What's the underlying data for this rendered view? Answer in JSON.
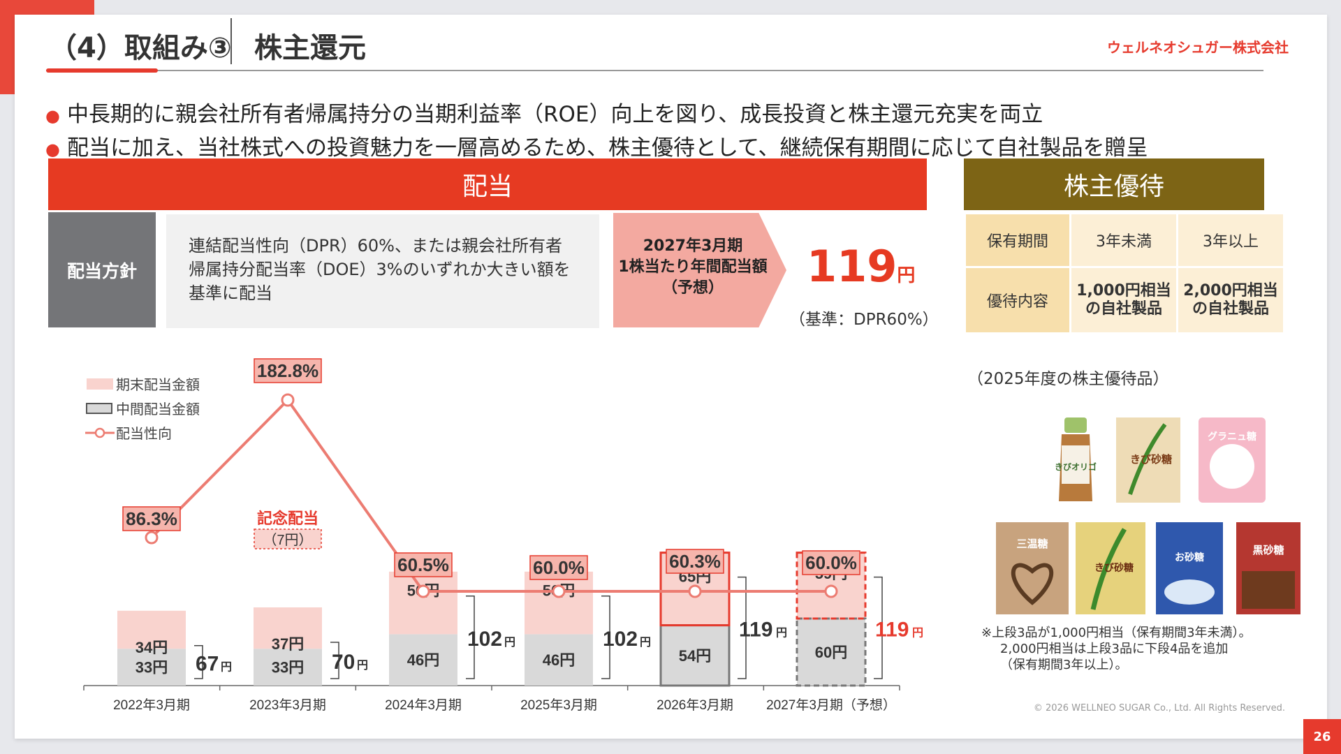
{
  "header": {
    "title": "（4）取組み③",
    "subtitle": "株主還元",
    "company": "ウェルネオシュガー株式会社"
  },
  "bullets": [
    "中長期的に親会社所有者帰属持分の当期利益率（ROE）向上を図り、成長投資と株主還元充実を両立",
    "配当に加え、当社株式への投資魅力を一層高めるため、株主優待として、継続保有期間に応じて自社製品を贈呈"
  ],
  "dividend": {
    "header": "配当",
    "policy_label": "配当方針",
    "policy_lines": [
      "連結配当性向（DPR）60%、または親会社所有者",
      "帰属持分配当率（DOE）3%のいずれか大きい額を",
      "基準に配当"
    ],
    "forecast_lines": [
      "2027年3月期",
      "1株当たり年間配当額",
      "（予想）"
    ],
    "forecast_amount": "119",
    "forecast_unit": "円",
    "basis": "（基準：DPR60%）"
  },
  "yutai": {
    "header": "株主優待",
    "row1": [
      "保有期間",
      "3年未満",
      "3年以上"
    ],
    "row2_label": "優待内容",
    "row2_a": [
      "1,000円相当",
      "の自社製品"
    ],
    "row2_b": [
      "2,000円相当",
      "の自社製品"
    ],
    "photo_caption": "（2025年度の株主優待品）",
    "note_lines": [
      "※上段3品が1,000円相当（保有期間3年未満）。",
      "2,000円相当は上段3品に下段4品を追加",
      "（保有期間3年以上）。"
    ],
    "products": [
      {
        "name": "きびオリゴ",
        "color": "#d9c4a0"
      },
      {
        "name": "きび砂糖",
        "color": "#e7d0a6"
      },
      {
        "name": "グラニュ糖",
        "color": "#f4b6c6"
      },
      {
        "name": "三温糖",
        "color": "#caa784"
      },
      {
        "name": "きび砂糖",
        "color": "#e8d88a"
      },
      {
        "name": "お砂糖",
        "color": "#3b62b4"
      },
      {
        "name": "黒砂糖",
        "color": "#b83a32"
      }
    ]
  },
  "chart_data": {
    "type": "bar",
    "categories": [
      "2022年3月期",
      "2023年3月期",
      "2024年3月期",
      "2025年3月期",
      "2026年3月期",
      "2027年3月期（予想）"
    ],
    "series": [
      {
        "name": "中間配当金額",
        "values": [
          33,
          33,
          46,
          46,
          54,
          60
        ],
        "labels": [
          "33円",
          "33円",
          "46円",
          "46円",
          "54円",
          "60円"
        ]
      },
      {
        "name": "期末配当金額",
        "values": [
          34,
          37,
          56,
          56,
          65,
          59
        ],
        "labels": [
          "34円",
          "37円",
          "56円",
          "56円",
          "65円",
          "59円"
        ]
      },
      {
        "name": "配当性向",
        "values": [
          86.3,
          182.8,
          60.5,
          60.0,
          60.3,
          60.0
        ],
        "labels": [
          "86.3%",
          "182.8%",
          "60.5%",
          "60.0%",
          "60.3%",
          "60.0%"
        ]
      }
    ],
    "totals": [
      67,
      70,
      102,
      102,
      119,
      119
    ],
    "total_labels": [
      "67",
      "70",
      "102",
      "102",
      "119",
      "119"
    ],
    "total_unit": "円",
    "annotation": [
      "記念配当",
      "（7円）"
    ],
    "legend": [
      "期末配当金額",
      "中間配当金額",
      "配当性向"
    ],
    "legend_position": "top-left",
    "grid": false,
    "colors": {
      "interim": "#d9d9d9",
      "final": "#f9d3ce",
      "payout": "#ec7c72",
      "accent": "#e63a2d"
    }
  },
  "footer": {
    "copyright": "© 2026 WELLNEO SUGAR Co., Ltd. All Rights Reserved.",
    "page": "26"
  }
}
